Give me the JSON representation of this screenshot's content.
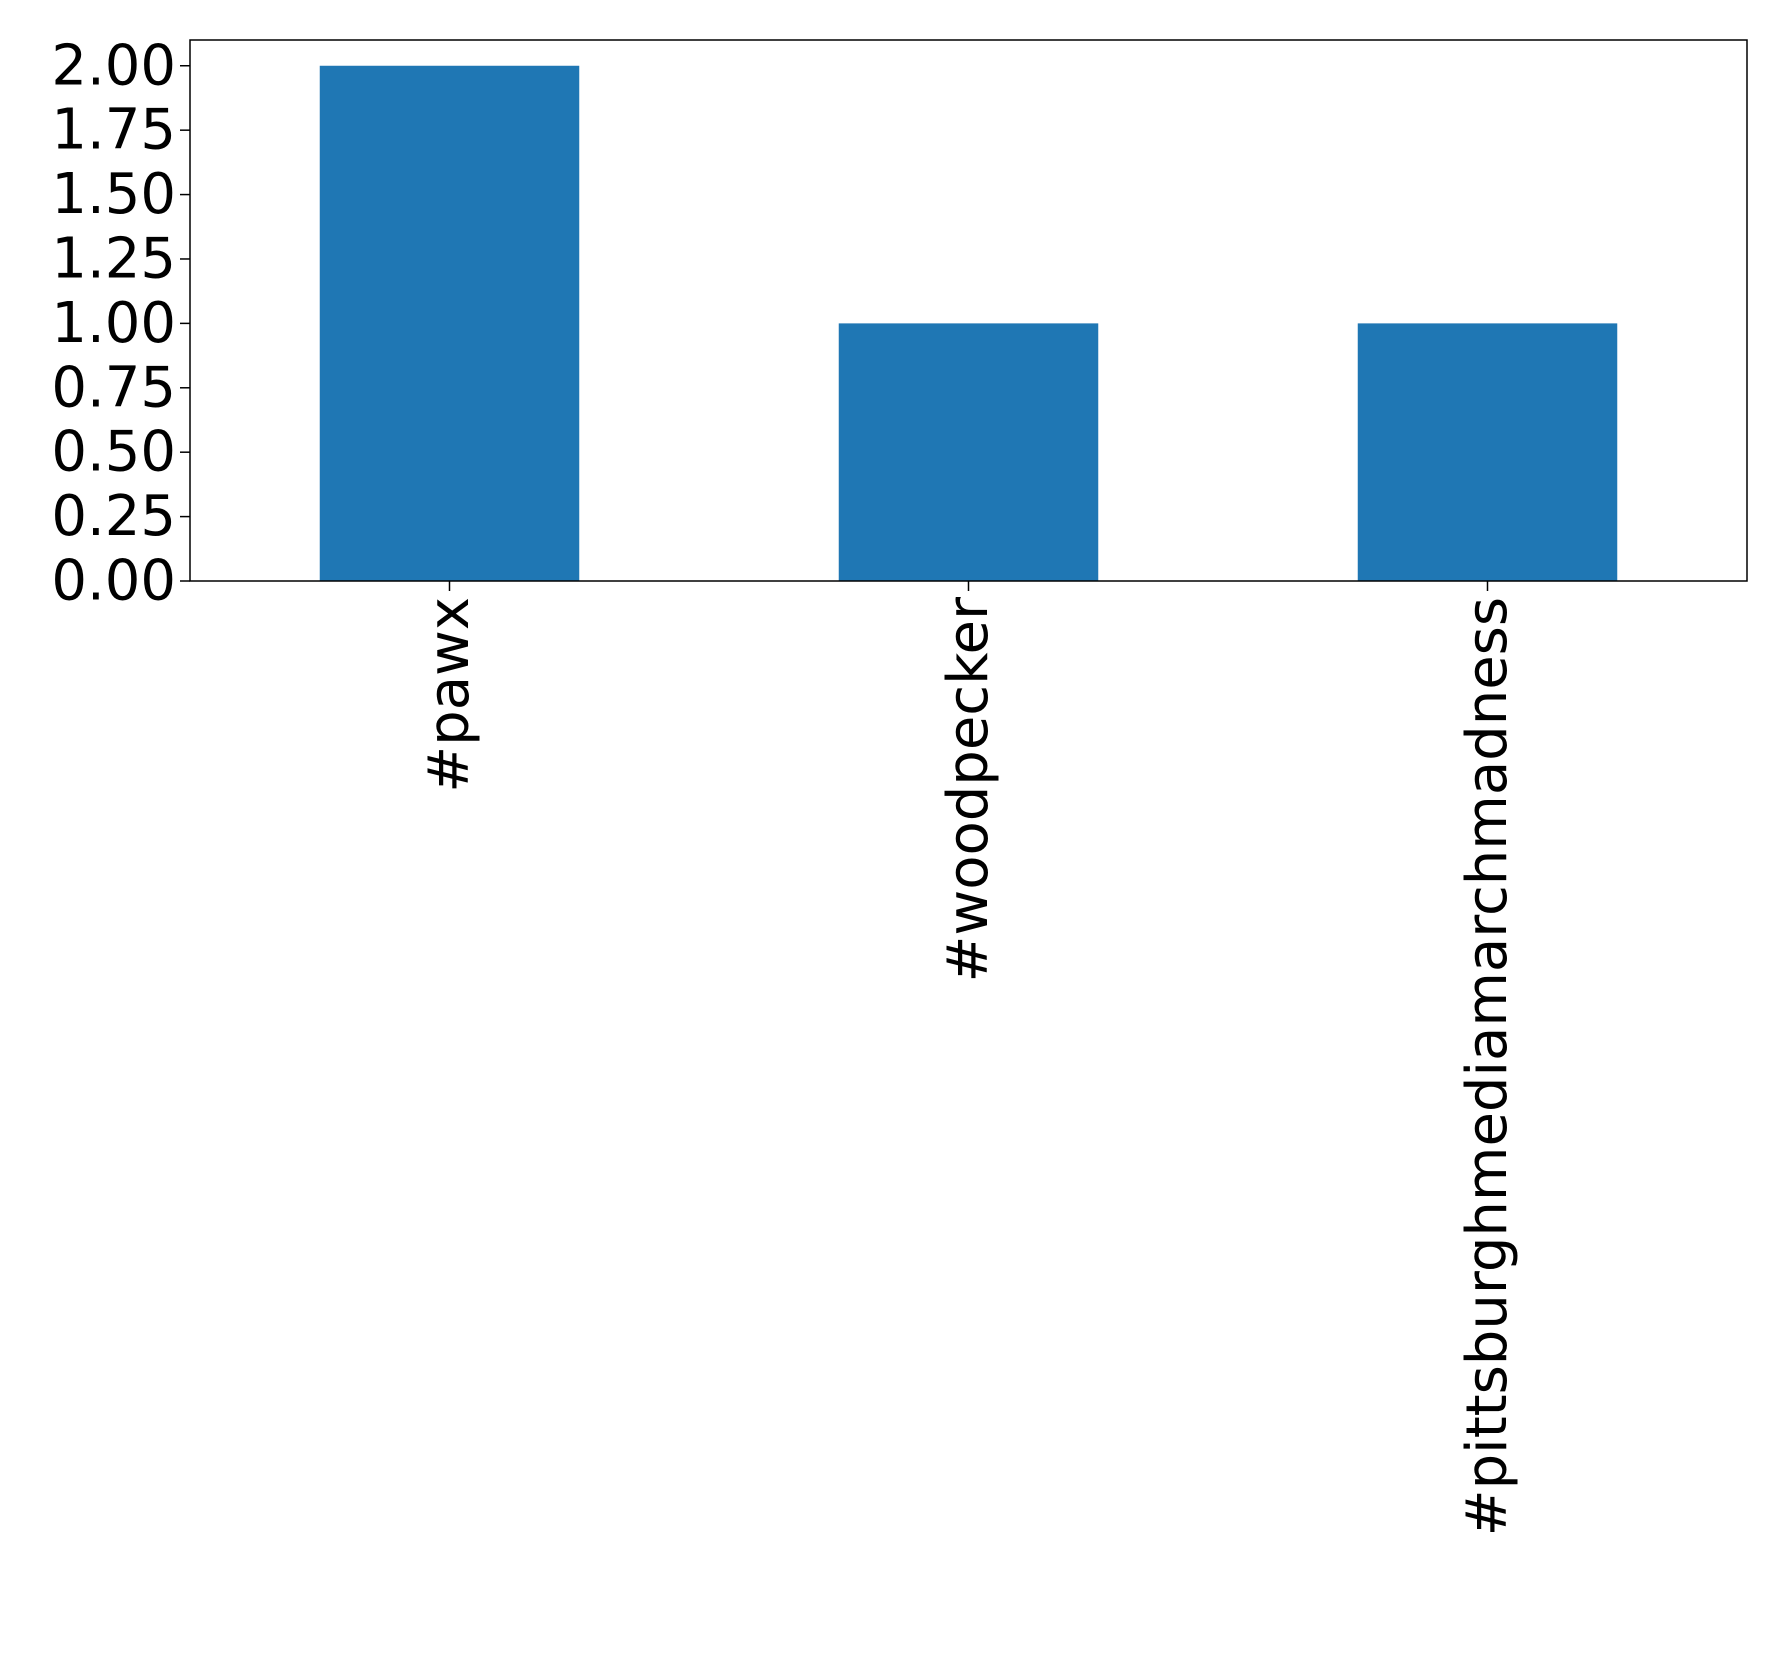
{
  "chart_data": {
    "type": "bar",
    "title": "",
    "xlabel": "",
    "ylabel": "",
    "categories": [
      "#pawx",
      "#woodpecker",
      "#pittsburghmediamarchmadness"
    ],
    "values": [
      2,
      1,
      1
    ],
    "ylim": [
      0,
      2.1
    ],
    "yticks": [
      "0.00",
      "0.25",
      "0.50",
      "0.75",
      "1.00",
      "1.25",
      "1.50",
      "1.75",
      "2.00"
    ],
    "ytick_values": [
      0,
      0.25,
      0.5,
      0.75,
      1.0,
      1.25,
      1.5,
      1.75,
      2.0
    ],
    "bar_color": "#1f77b4",
    "grid": false,
    "legend": "none",
    "xtick_rotation": "vertical"
  }
}
